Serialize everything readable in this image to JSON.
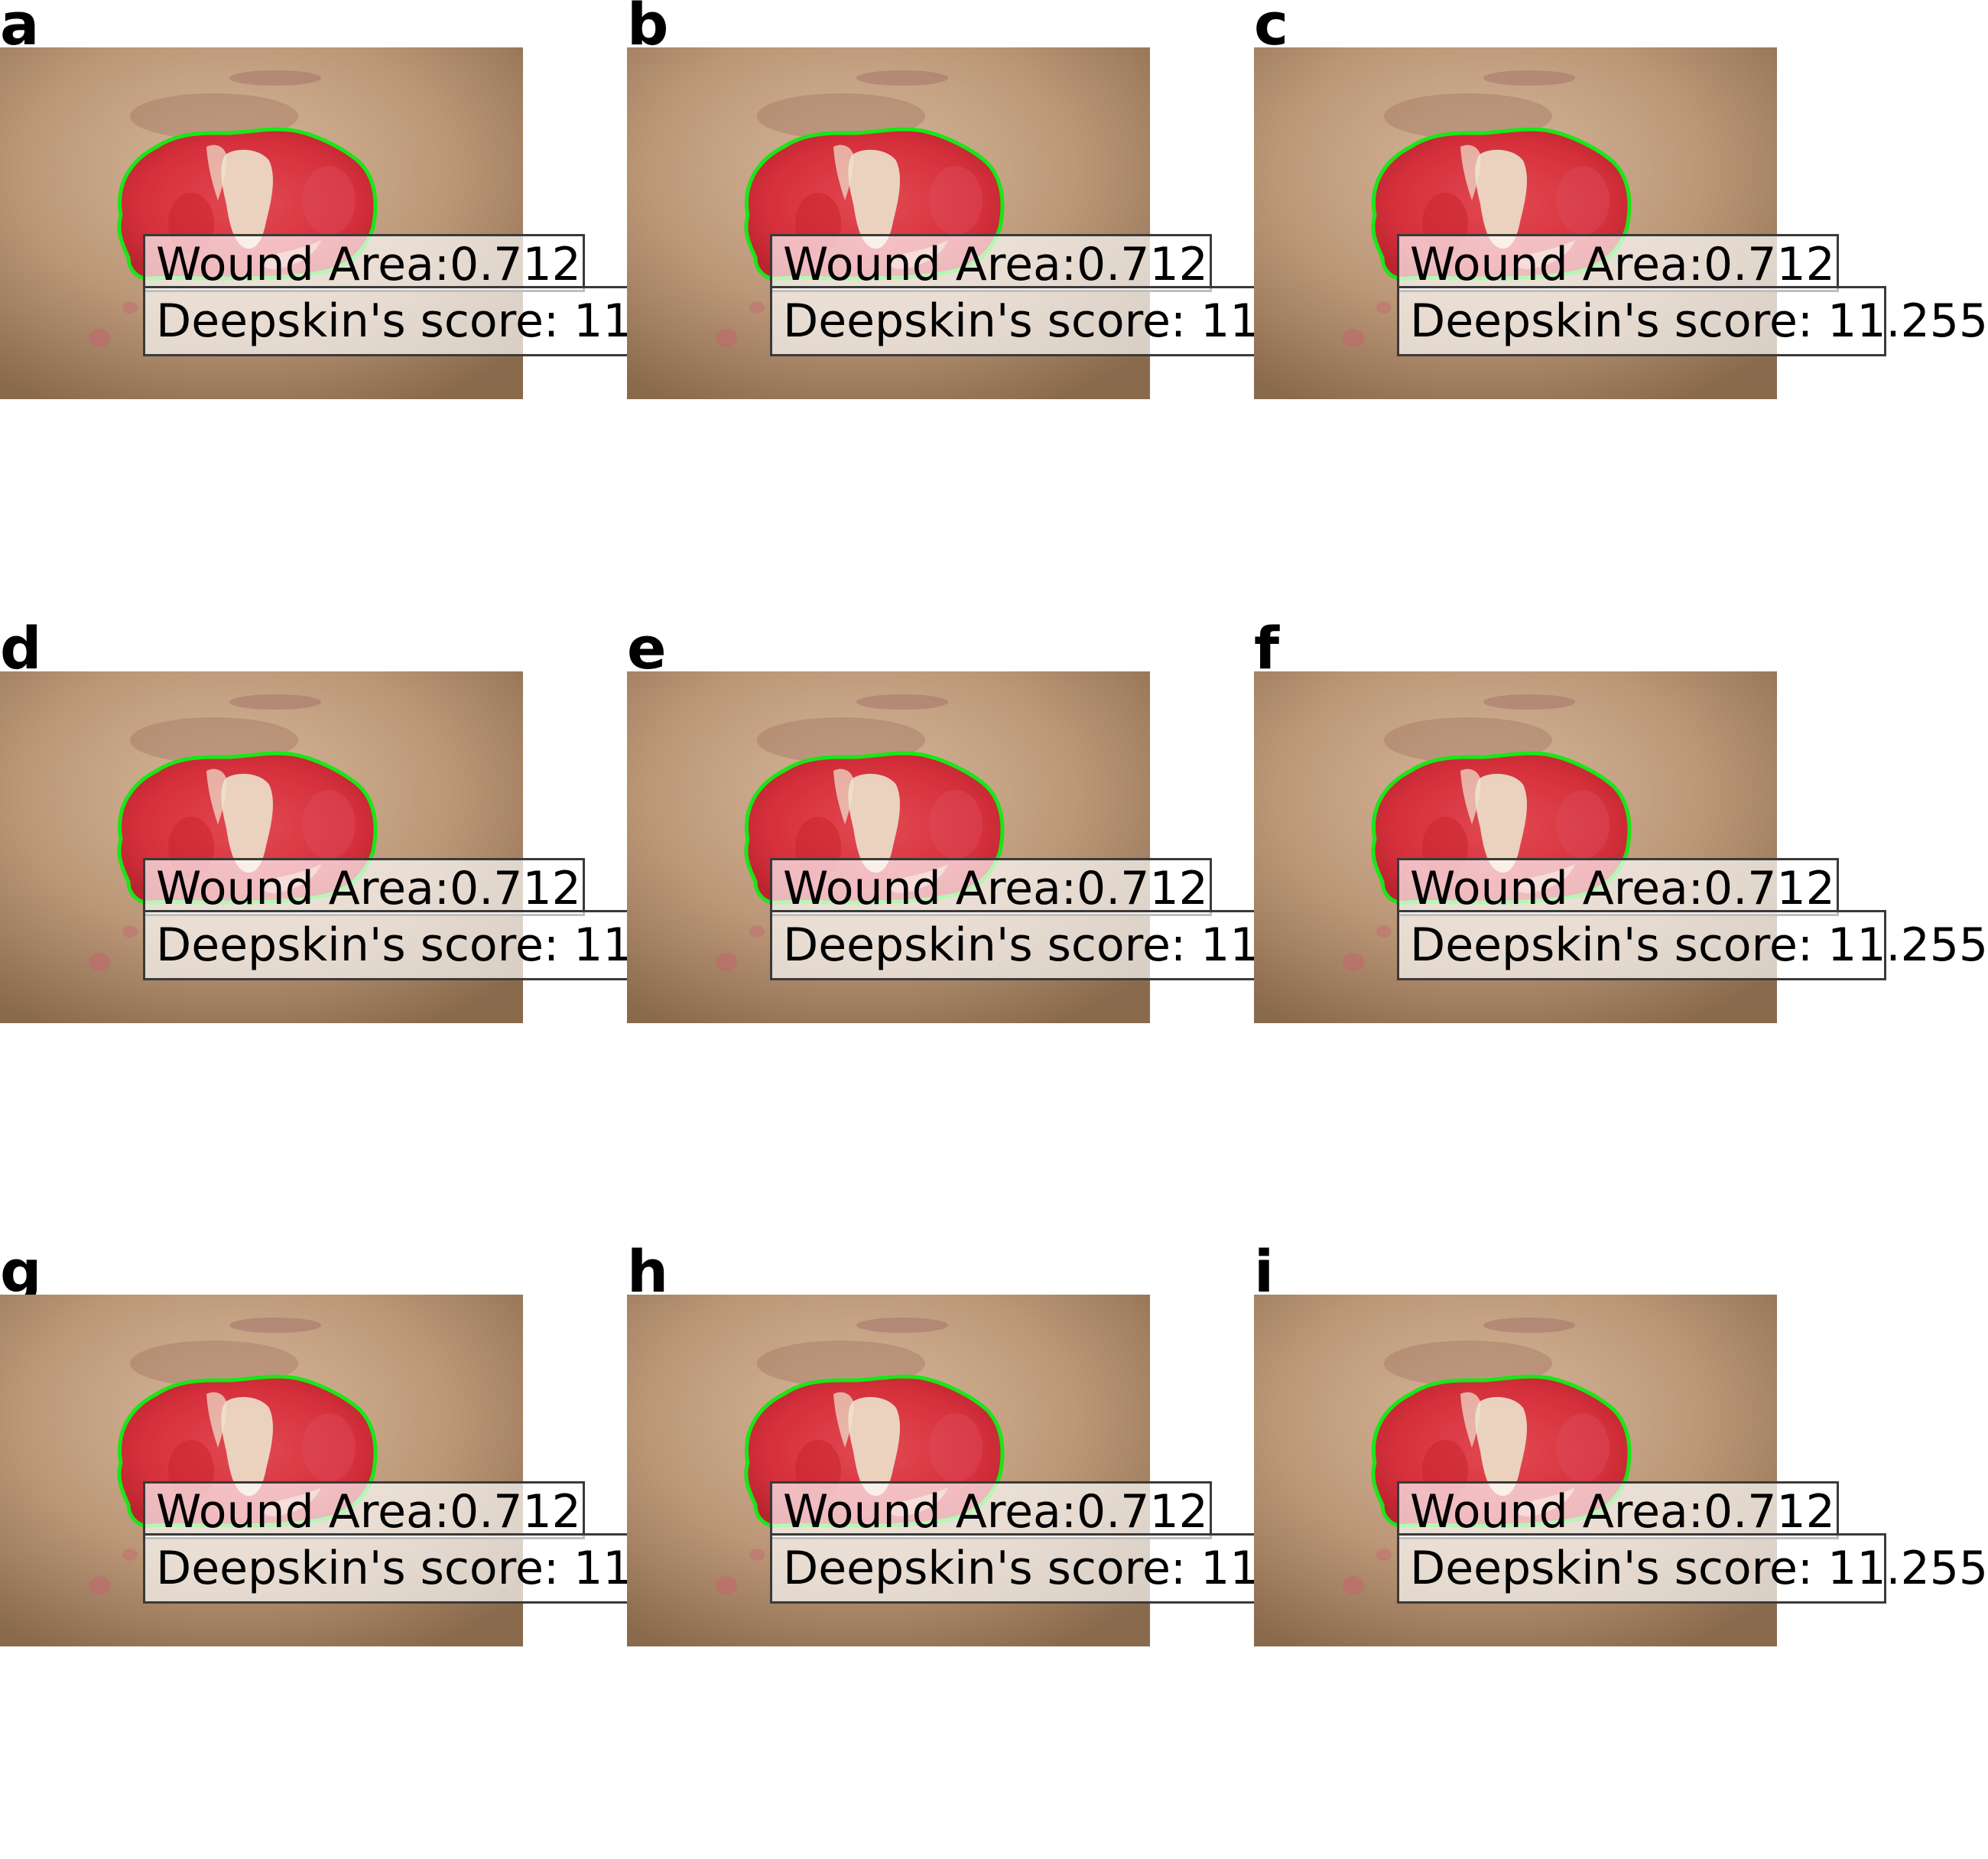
{
  "panels": [
    {
      "letter": "a",
      "area_text": "Wound Area:0.712",
      "score_text": "Deepskin's score: 11."
    },
    {
      "letter": "b",
      "area_text": "Wound Area:0.712",
      "score_text": "Deepskin's score: 11."
    },
    {
      "letter": "c",
      "area_text": "Wound Area:0.712",
      "score_text": "Deepskin's score: 11.255"
    },
    {
      "letter": "d",
      "area_text": "Wound Area:0.712",
      "score_text": "Deepskin's score: 11."
    },
    {
      "letter": "e",
      "area_text": "Wound Area:0.712",
      "score_text": "Deepskin's score: 11."
    },
    {
      "letter": "f",
      "area_text": "Wound Area:0.712",
      "score_text": "Deepskin's score: 11.255"
    },
    {
      "letter": "g",
      "area_text": "Wound Area:0.712",
      "score_text": "Deepskin's score: 11."
    },
    {
      "letter": "h",
      "area_text": "Wound Area:0.712",
      "score_text": "Deepskin's score: 11."
    },
    {
      "letter": "i",
      "area_text": "Wound Area:0.712",
      "score_text": "Deepskin's score: 11.255"
    }
  ],
  "colors": {
    "segmentation_contour": "#19e619",
    "skin": "#b08c6e",
    "wound_bed": "#d8323c",
    "slough": "#ece2cc",
    "box_border": "#3a3a3a"
  }
}
